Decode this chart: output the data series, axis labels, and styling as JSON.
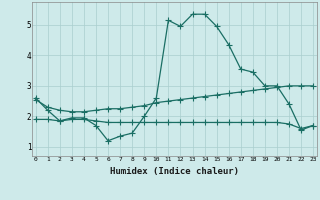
{
  "xlabel": "Humidex (Indice chaleur)",
  "background_color": "#ceeaea",
  "grid_color": "#aacece",
  "line_color": "#1a6e64",
  "x_values": [
    0,
    1,
    2,
    3,
    4,
    5,
    6,
    7,
    8,
    9,
    10,
    11,
    12,
    13,
    14,
    15,
    16,
    17,
    18,
    19,
    20,
    21,
    22,
    23
  ],
  "line1_y": [
    2.6,
    2.2,
    1.85,
    1.95,
    1.95,
    1.7,
    1.2,
    1.35,
    1.45,
    2.0,
    2.6,
    5.15,
    4.95,
    5.35,
    5.35,
    4.95,
    4.35,
    3.55,
    3.45,
    3.0,
    3.0,
    2.4,
    1.55,
    1.7
  ],
  "line2_y": [
    2.55,
    2.3,
    2.2,
    2.15,
    2.15,
    2.2,
    2.25,
    2.25,
    2.3,
    2.35,
    2.45,
    2.5,
    2.55,
    2.6,
    2.65,
    2.7,
    2.75,
    2.8,
    2.85,
    2.9,
    2.95,
    3.0,
    3.0,
    3.0
  ],
  "line3_y": [
    1.9,
    1.9,
    1.85,
    1.9,
    1.9,
    1.85,
    1.8,
    1.8,
    1.8,
    1.8,
    1.8,
    1.8,
    1.8,
    1.8,
    1.8,
    1.8,
    1.8,
    1.8,
    1.8,
    1.8,
    1.8,
    1.75,
    1.6,
    1.7
  ],
  "ylim": [
    0.7,
    5.75
  ],
  "yticks": [
    1,
    2,
    3,
    4,
    5
  ],
  "xticks": [
    0,
    1,
    2,
    3,
    4,
    5,
    6,
    7,
    8,
    9,
    10,
    11,
    12,
    13,
    14,
    15,
    16,
    17,
    18,
    19,
    20,
    21,
    22,
    23
  ],
  "xlim": [
    -0.3,
    23.3
  ]
}
